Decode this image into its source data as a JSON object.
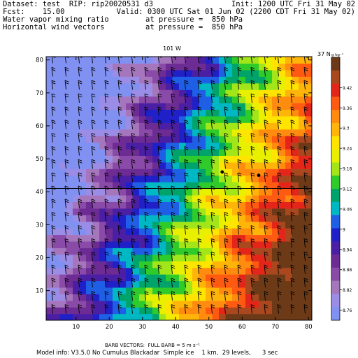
{
  "header": {
    "line1_left": "Dataset: test  RIP: rip20020531 d3",
    "line1_right": "Init: 1200 UTC Fri 31 May 02",
    "line2_left": "Fcst:    15.00",
    "line2_right": "Valid: 0300 UTC Sat 01 Jun 02 (2200 CDT Fri 31 May 02)",
    "line3_left": "Water vapor mixing ratio",
    "line3_right": "at pressure =  850 hPa",
    "line4_left": "Horizontal wind vectors",
    "line4_right": "at pressure =  850 hPa"
  },
  "footer": {
    "barb_line": "BARB VECTORS:  FULL BARB = 5 m s⁻¹",
    "model_info": "Model info: V3.5.0 No Cumulus Blackadar  Simple ice    1 km,  29 levels,      3 sec"
  },
  "chart_data": {
    "type": "heatmap",
    "title": "",
    "xlabel": "",
    "ylabel": "",
    "xlim": [
      1,
      81
    ],
    "ylim": [
      1,
      81
    ],
    "x_ticks": [
      10,
      20,
      30,
      40,
      50,
      60,
      70,
      80
    ],
    "y_ticks": [
      10,
      20,
      30,
      40,
      50,
      60,
      70,
      80
    ],
    "top_axis_label": "101 W",
    "right_axis_label": "37 N",
    "latitude_line_y": 41,
    "colorbar": {
      "unit": "g kg⁻¹",
      "labels": [
        "9.42",
        "9.36",
        "9.3",
        "9.24",
        "9.18",
        "9.12",
        "9.06",
        "9",
        "8.94",
        "8.88",
        "8.82",
        "8.76"
      ],
      "colors": [
        "#6d3a17",
        "#a9481f",
        "#e4261a",
        "#ff5a12",
        "#ff8c0e",
        "#ffb40a",
        "#ffe400",
        "#e8f000",
        "#a2e61a",
        "#2fcb2a",
        "#00a36a",
        "#00b8c4",
        "#1f5fe5",
        "#2020c8",
        "#4b1fa3",
        "#6d2c93",
        "#8a4aa8",
        "#a676bd",
        "#9b8ce6",
        "#8191f2"
      ]
    },
    "markers": [
      {
        "x": 54,
        "y": 46
      },
      {
        "x": 65,
        "y": 45
      }
    ],
    "field_model": {
      "level_count": 20,
      "wind_barb_spacing_cells": 4
    }
  }
}
